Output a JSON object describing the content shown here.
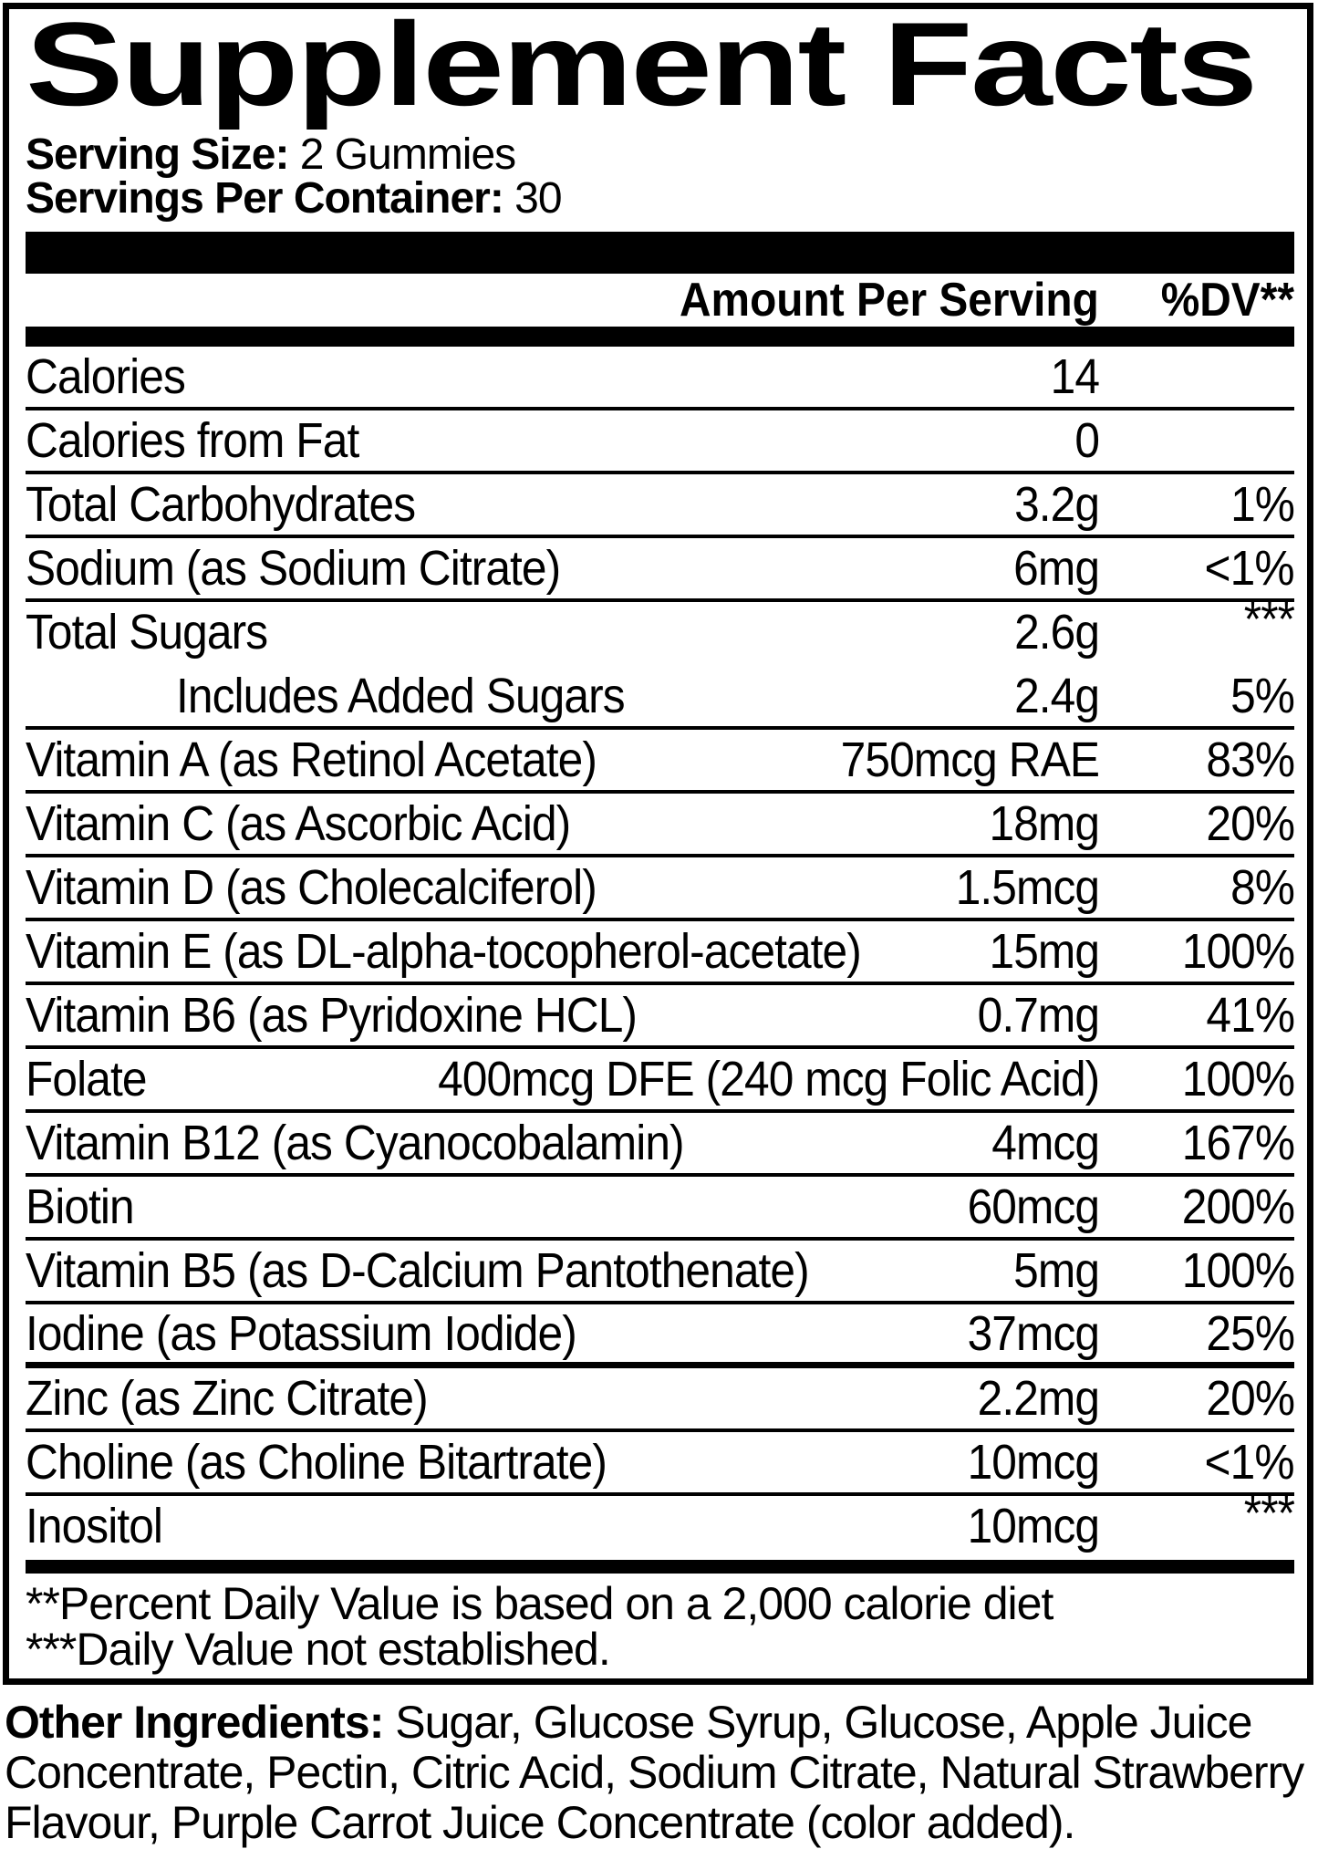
{
  "colors": {
    "ink": "#000000",
    "paper": "#ffffff"
  },
  "title": "Supplement Facts",
  "serving": {
    "size_label": "Serving Size:",
    "size_value": " 2 Gummies",
    "per_container_label": "Servings Per Container:",
    "per_container_value": " 30"
  },
  "table": {
    "header": {
      "amount": "Amount Per Serving",
      "dv": "%DV**"
    },
    "rows": [
      {
        "label": "Calories",
        "amount": "14",
        "dv": ""
      },
      {
        "label": "Calories from Fat",
        "amount": "0",
        "dv": ""
      },
      {
        "label": "Total Carbohydrates",
        "amount": "3.2g",
        "dv": "1%"
      },
      {
        "label": "Sodium (as Sodium Citrate)",
        "amount": "6mg",
        "dv": "<1%"
      },
      {
        "label": "Total Sugars",
        "amount": "2.6g",
        "dv": "***",
        "raised": true,
        "no_divider": true
      },
      {
        "label": "Includes Added Sugars",
        "amount": "2.4g",
        "dv": "5%",
        "indent": true
      },
      {
        "label": "Vitamin A (as Retinol Acetate)",
        "amount": "750mcg RAE",
        "dv": "83%"
      },
      {
        "label": "Vitamin C (as Ascorbic Acid)",
        "amount": "18mg",
        "dv": "20%"
      },
      {
        "label": "Vitamin D (as Cholecalciferol)",
        "amount": "1.5mcg",
        "dv": "8%"
      },
      {
        "label": "Vitamin E (as DL-alpha-tocopherol-acetate)",
        "amount": "15mg",
        "dv": "100%"
      },
      {
        "label": "Vitamin B6 (as Pyridoxine HCL)",
        "amount": "0.7mg",
        "dv": "41%"
      },
      {
        "label": "Folate",
        "amount": "400mcg DFE (240 mcg Folic Acid)",
        "dv": "100%"
      },
      {
        "label": "Vitamin B12 (as Cyanocobalamin)",
        "amount": "4mcg",
        "dv": "167%"
      },
      {
        "label": "Biotin",
        "amount": "60mcg",
        "dv": "200%"
      },
      {
        "label": "Vitamin B5 (as D-Calcium Pantothenate)",
        "amount": "5mg",
        "dv": "100%"
      },
      {
        "label": "Iodine (as Potassium Iodide)",
        "amount": "37mcg",
        "dv": "25%",
        "thick_divider": true
      },
      {
        "label": "Zinc (as Zinc Citrate)",
        "amount": "2.2mg",
        "dv": "20%"
      },
      {
        "label": "Choline (as Choline Bitartrate)",
        "amount": "10mcg",
        "dv": "<1%"
      },
      {
        "label": "Inositol",
        "amount": "10mcg",
        "dv": "***",
        "raised": true,
        "no_divider": true
      }
    ]
  },
  "footnotes": [
    "**Percent Daily Value is based on a 2,000 calorie diet",
    "***Daily Value not established."
  ],
  "other_ingredients": {
    "label": "Other Ingredients:",
    "text": " Sugar, Glucose Syrup, Glucose, Apple Juice Concentrate, Pectin, Citric Acid, Sodium Citrate, Natural Strawberry Flavour, Purple Carrot Juice Concentrate (color added)."
  }
}
